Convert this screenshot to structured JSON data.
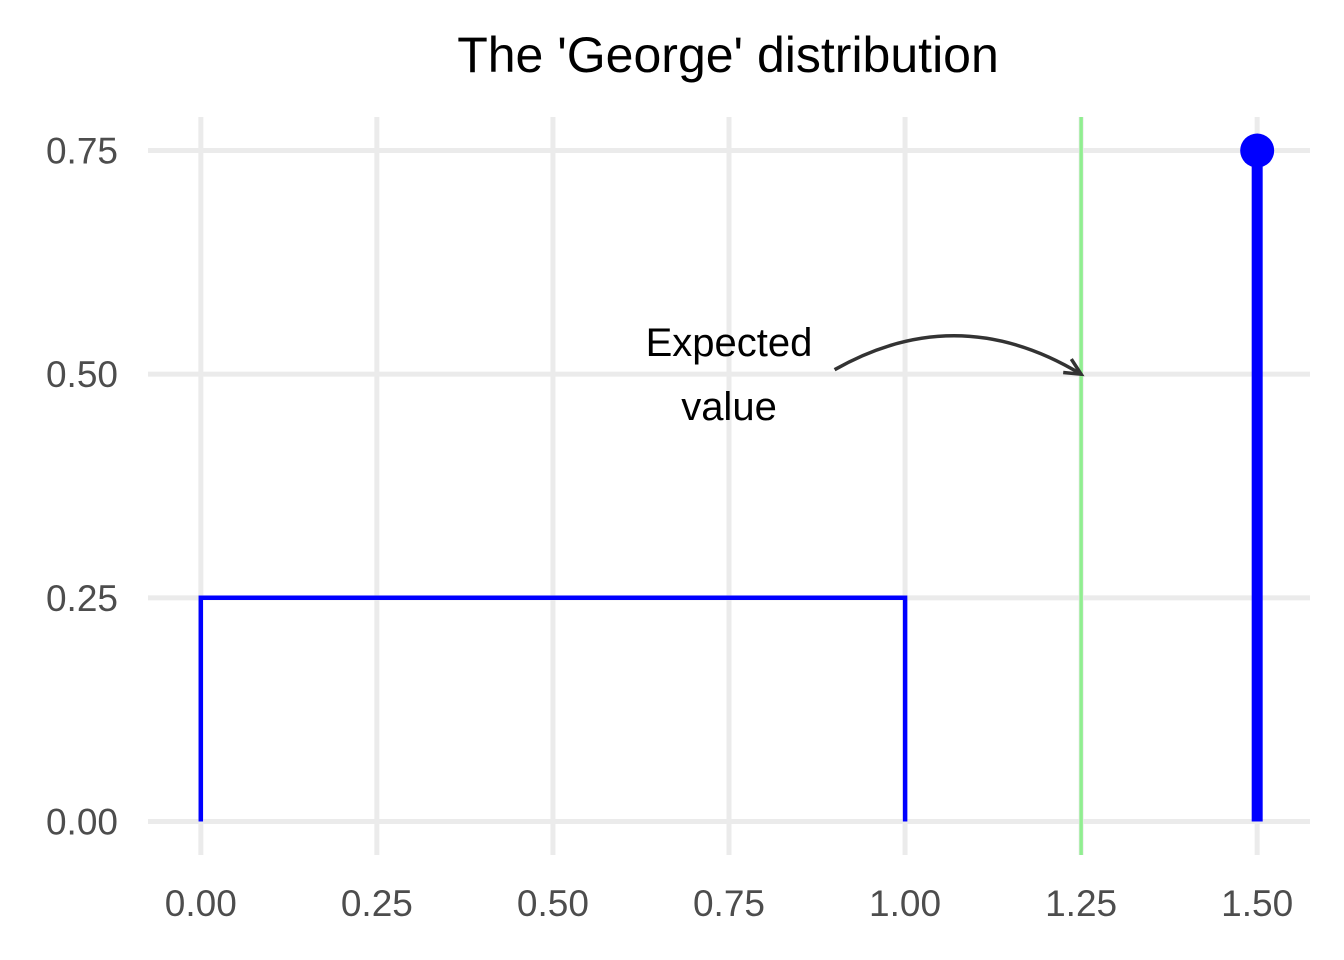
{
  "chart_data": {
    "type": "line",
    "title": "The 'George' distribution",
    "xlabel": "",
    "ylabel": "",
    "xlim": [
      -0.075,
      1.575
    ],
    "ylim": [
      -0.0375,
      0.7875
    ],
    "x_ticks": [
      "0.00",
      "0.25",
      "0.50",
      "0.75",
      "1.00",
      "1.25",
      "1.50"
    ],
    "y_ticks": [
      "0.00",
      "0.25",
      "0.50",
      "0.75"
    ],
    "grid": true,
    "colors": {
      "density": "#0000ff",
      "expected_value": "#90ee90",
      "arrow": "#333333",
      "grid": "#ebebeb"
    },
    "series": [
      {
        "kind": "continuous-density",
        "points": [
          [
            0,
            0
          ],
          [
            0,
            0.25
          ],
          [
            1,
            0.25
          ],
          [
            1,
            0
          ]
        ]
      },
      {
        "kind": "point-mass",
        "x": 1.5,
        "y": 0.75
      }
    ],
    "reference_lines": [
      {
        "orientation": "vertical",
        "x": 1.25
      }
    ],
    "annotations": [
      {
        "text_lines": [
          "Expected",
          "value"
        ],
        "x": 0.75,
        "y": 0.5,
        "arrow_from": [
          0.9,
          0.505
        ],
        "arrow_to": [
          1.25,
          0.5
        ]
      }
    ]
  }
}
